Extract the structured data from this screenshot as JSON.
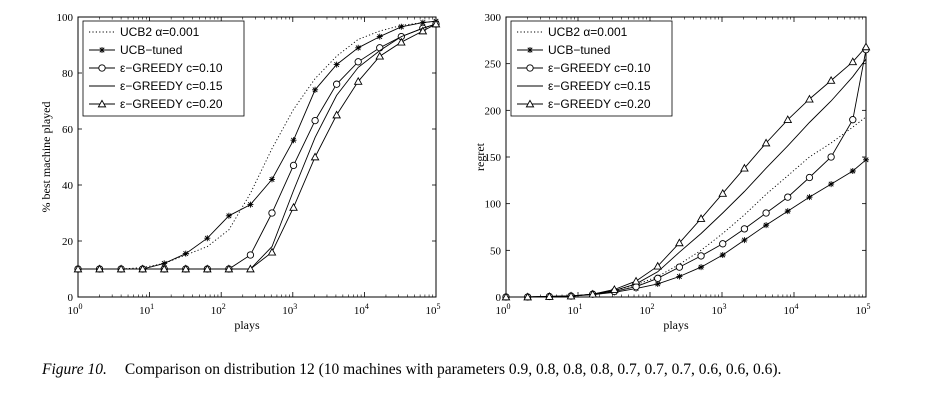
{
  "chart_data": [
    {
      "type": "line",
      "title": "",
      "xlabel": "plays",
      "ylabel": "% best machine played",
      "xscale": "log",
      "xlim": [
        1,
        100000
      ],
      "ylim": [
        0,
        100
      ],
      "xticks": [
        1,
        10,
        100,
        1000,
        10000,
        100000
      ],
      "yticks": [
        0,
        20,
        40,
        60,
        80,
        100
      ],
      "xtick_labels": [
        {
          "base": "10",
          "exp": "0"
        },
        {
          "base": "10",
          "exp": "1"
        },
        {
          "base": "10",
          "exp": "2"
        },
        {
          "base": "10",
          "exp": "3"
        },
        {
          "base": "10",
          "exp": "4"
        },
        {
          "base": "10",
          "exp": "5"
        }
      ],
      "ytick_labels": [
        "0",
        "20",
        "40",
        "60",
        "80",
        "100"
      ],
      "legend_position": "top-left",
      "grid": false,
      "series": [
        {
          "name": "UCB2 α=0.001",
          "style": "dotted",
          "marker": "none",
          "x": [
            1,
            2,
            4,
            8,
            16,
            32,
            64,
            128,
            256,
            512,
            1024,
            2048,
            4096,
            8192,
            16384,
            32768,
            65536,
            100000
          ],
          "y": [
            10,
            10,
            10,
            10.5,
            12,
            15,
            18,
            24,
            37,
            53,
            67,
            78,
            86,
            92,
            95,
            97,
            98,
            98.5
          ]
        },
        {
          "name": "UCB−tuned",
          "style": "solid",
          "marker": "star",
          "x": [
            1,
            2,
            4,
            8,
            16,
            32,
            64,
            128,
            256,
            512,
            1024,
            2048,
            4096,
            8192,
            16384,
            32768,
            65536,
            100000
          ],
          "y": [
            10,
            10,
            10,
            10,
            12,
            15.5,
            21,
            29,
            33,
            42,
            56,
            74,
            83,
            89,
            93,
            96.5,
            98,
            98.5
          ]
        },
        {
          "name": "ε−GREEDY c=0.10",
          "style": "solid",
          "marker": "circle",
          "x": [
            1,
            2,
            4,
            8,
            16,
            32,
            64,
            128,
            256,
            512,
            1024,
            2048,
            4096,
            8192,
            16384,
            32768,
            65536,
            100000
          ],
          "y": [
            10,
            10,
            10,
            10,
            10,
            10,
            10,
            10,
            15,
            30,
            47,
            63,
            76,
            84,
            89,
            93,
            96,
            97.5
          ]
        },
        {
          "name": "ε−GREEDY c=0.15",
          "style": "solid",
          "marker": "none",
          "x": [
            1,
            2,
            4,
            8,
            16,
            32,
            64,
            128,
            256,
            512,
            1024,
            2048,
            4096,
            8192,
            16384,
            32768,
            65536,
            100000
          ],
          "y": [
            10,
            10,
            10,
            10,
            10,
            10,
            10,
            10,
            10,
            18,
            38,
            57,
            72,
            82,
            88,
            93,
            96,
            97.5
          ]
        },
        {
          "name": "ε−GREEDY c=0.20",
          "style": "solid",
          "marker": "triangle",
          "x": [
            1,
            2,
            4,
            8,
            16,
            32,
            64,
            128,
            256,
            512,
            1024,
            2048,
            4096,
            8192,
            16384,
            32768,
            65536,
            100000
          ],
          "y": [
            10,
            10,
            10,
            10,
            10,
            10,
            10,
            10,
            10,
            16,
            32,
            50,
            65,
            77,
            86,
            91,
            95,
            97.5
          ]
        }
      ]
    },
    {
      "type": "line",
      "title": "",
      "xlabel": "plays",
      "ylabel": "regret",
      "xscale": "log",
      "xlim": [
        1,
        100000
      ],
      "ylim": [
        0,
        300
      ],
      "xticks": [
        1,
        10,
        100,
        1000,
        10000,
        100000
      ],
      "yticks": [
        0,
        50,
        100,
        150,
        200,
        250,
        300
      ],
      "xtick_labels": [
        {
          "base": "10",
          "exp": "0"
        },
        {
          "base": "10",
          "exp": "1"
        },
        {
          "base": "10",
          "exp": "2"
        },
        {
          "base": "10",
          "exp": "3"
        },
        {
          "base": "10",
          "exp": "4"
        },
        {
          "base": "10",
          "exp": "5"
        }
      ],
      "ytick_labels": [
        "0",
        "50",
        "100",
        "150",
        "200",
        "250",
        "300"
      ],
      "legend_position": "top-left",
      "grid": false,
      "series": [
        {
          "name": "UCB2 α=0.001",
          "style": "dotted",
          "marker": "none",
          "x": [
            1,
            2,
            4,
            8,
            16,
            32,
            64,
            128,
            256,
            512,
            1024,
            2048,
            4096,
            8192,
            16384,
            32768,
            65536,
            100000
          ],
          "y": [
            0,
            0,
            0.5,
            1,
            3,
            7,
            13,
            22,
            35,
            50,
            68,
            88,
            110,
            130,
            150,
            165,
            182,
            193
          ]
        },
        {
          "name": "UCB−tuned",
          "style": "solid",
          "marker": "star",
          "x": [
            1,
            2,
            4,
            8,
            16,
            32,
            64,
            128,
            256,
            512,
            1024,
            2048,
            4096,
            8192,
            16384,
            32768,
            65536,
            100000
          ],
          "y": [
            0,
            0,
            0.5,
            1,
            2.5,
            5,
            9,
            14,
            22,
            32,
            45,
            61,
            77,
            92,
            107,
            121,
            135,
            147
          ]
        },
        {
          "name": "ε−GREEDY c=0.10",
          "style": "solid",
          "marker": "circle",
          "x": [
            1,
            2,
            4,
            8,
            16,
            32,
            64,
            128,
            256,
            512,
            1024,
            2048,
            4096,
            8192,
            16384,
            32768,
            65536,
            100000
          ],
          "y": [
            0,
            0,
            0.5,
            1,
            3,
            6,
            11,
            20,
            32,
            44,
            57,
            73,
            90,
            107,
            128,
            150,
            190,
            265
          ]
        },
        {
          "name": "ε−GREEDY c=0.15",
          "style": "solid",
          "marker": "none",
          "x": [
            1,
            2,
            4,
            8,
            16,
            32,
            64,
            128,
            256,
            512,
            1024,
            2048,
            4096,
            8192,
            16384,
            32768,
            65536,
            100000
          ],
          "y": [
            0,
            0,
            0.5,
            1,
            3,
            7,
            14,
            27,
            48,
            68,
            90,
            113,
            138,
            162,
            187,
            210,
            236,
            255
          ]
        },
        {
          "name": "ε−GREEDY c=0.20",
          "style": "solid",
          "marker": "triangle",
          "x": [
            1,
            2,
            4,
            8,
            16,
            32,
            64,
            128,
            256,
            512,
            1024,
            2048,
            4096,
            8192,
            16384,
            32768,
            65536,
            100000
          ],
          "y": [
            0,
            0,
            0.5,
            1,
            3,
            8,
            17,
            33,
            58,
            84,
            111,
            138,
            165,
            190,
            212,
            232,
            252,
            268
          ]
        }
      ]
    }
  ],
  "caption": {
    "label": "Figure 10.",
    "text": "Comparison on distribution 12 (10 machines with parameters 0.9, 0.8, 0.8, 0.8, 0.7, 0.7, 0.7, 0.6, 0.6, 0.6)."
  }
}
